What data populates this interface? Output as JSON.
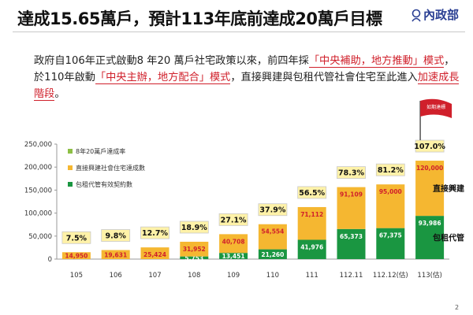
{
  "slide": {
    "title": "達成15.65萬戶，預計113年底前達成20萬戶目標",
    "logo_text": "內政部",
    "page_number": "2",
    "paragraph": [
      {
        "text": "政府自106年正式啟動8 年20 萬戶社宅政策以來，前四年採",
        "highlight": false
      },
      {
        "text": "「中央補助，地方推動」模式",
        "highlight": true
      },
      {
        "text": "，於110年啟動",
        "highlight": false
      },
      {
        "text": "「中央主辦，地方配合」模式",
        "highlight": true
      },
      {
        "text": "，直接興建與包租代管社會住宅至此進入",
        "highlight": false
      },
      {
        "text": "加速成長階段",
        "highlight": true
      },
      {
        "text": "。",
        "highlight": false
      }
    ]
  },
  "chart_data": {
    "type": "bar",
    "stacked": true,
    "categories": [
      "105",
      "106",
      "107",
      "108",
      "109",
      "110",
      "111",
      "112.11",
      "112.12(估)",
      "113(估)"
    ],
    "ylim": [
      0,
      250000
    ],
    "yticks": [
      "0",
      "50,000",
      "100,000",
      "150,000",
      "200,000",
      "250,000"
    ],
    "legend": [
      "8年20萬戶達成率",
      "直接興建社會住宅達成數",
      "包租代管有效契約數"
    ],
    "series": [
      {
        "name": "包租代管有效契約數",
        "color": "#1a9641",
        "values": [
          0,
          0,
          0,
          5753,
          13451,
          21260,
          41976,
          65373,
          67375,
          93986
        ],
        "labels": [
          "",
          "",
          "",
          "5,753",
          "13,451",
          "21,260",
          "41,976",
          "65,373",
          "67,375",
          "93,986"
        ]
      },
      {
        "name": "直接興建社會住宅達成數",
        "color": "#f5b731",
        "values": [
          14950,
          19631,
          25424,
          31952,
          40708,
          54554,
          71112,
          91109,
          95000,
          120000
        ],
        "labels": [
          "14,950",
          "19,631",
          "25,424",
          "31,952",
          "40,708",
          "54,554",
          "71,112",
          "91,109",
          "95,000",
          "120,000"
        ]
      }
    ],
    "rates": [
      "7.5%",
      "9.8%",
      "12.7%",
      "18.9%",
      "27.1%",
      "37.9%",
      "56.5%",
      "78.3%",
      "81.2%",
      "107.0%"
    ],
    "side_labels": [
      "直接興建",
      "包租代管"
    ],
    "flag_text": "如期達標",
    "colors": {
      "accent_red": "#d0202b",
      "rate_box": "#fff2a8",
      "rate_box_border": "#c9c9c9",
      "legend_rate": "#8dbf45"
    }
  }
}
